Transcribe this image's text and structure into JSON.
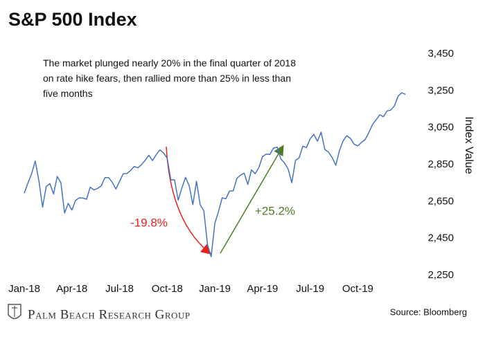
{
  "chart_data": {
    "type": "line",
    "title": "S&P 500 Index",
    "note": "The market plunged nearly 20% in the final quarter of 2018 on rate hike fears, then rallied more than 25% in less than five months",
    "annotations": [
      "-19.8%",
      "+25.2%"
    ],
    "ylabel": "Index Value",
    "source": "Source: Bloomberg",
    "brand": "Palm Beach Research Group",
    "color": "#4472c4",
    "categories": [
      "Jan-18",
      null,
      null,
      null,
      null,
      null,
      null,
      null,
      null,
      null,
      null,
      null,
      null,
      "Apr-18",
      null,
      null,
      null,
      null,
      null,
      null,
      null,
      null,
      null,
      null,
      null,
      null,
      "Jul-18",
      null,
      null,
      null,
      null,
      null,
      null,
      null,
      null,
      null,
      null,
      null,
      null,
      "Oct-18",
      null,
      null,
      null,
      null,
      null,
      null,
      null,
      null,
      null,
      null,
      null,
      null,
      "Jan-19",
      null,
      null,
      null,
      null,
      null,
      null,
      null,
      null,
      null,
      null,
      null,
      null,
      "Apr-19",
      null,
      null,
      null,
      null,
      null,
      null,
      null,
      null,
      null,
      null,
      null,
      null,
      "Jul-19",
      null,
      null,
      null,
      null,
      null,
      null,
      null,
      null,
      null,
      null,
      null,
      null,
      "Oct-19",
      null,
      null,
      null,
      null,
      null,
      null,
      null,
      null,
      null,
      null,
      null,
      null,
      null
    ],
    "values": [
      2695,
      2750,
      2800,
      2870,
      2762,
      2620,
      2732,
      2747,
      2691,
      2786,
      2752,
      2588,
      2640,
      2604,
      2656,
      2670,
      2669,
      2663,
      2728,
      2713,
      2721,
      2735,
      2779,
      2780,
      2755,
      2718,
      2759,
      2801,
      2802,
      2818,
      2840,
      2833,
      2850,
      2874,
      2901,
      2872,
      2904,
      2930,
      2914,
      2885,
      2767,
      2768,
      2658,
      2723,
      2781,
      2736,
      2633,
      2760,
      2633,
      2600,
      2416,
      2351,
      2532,
      2596,
      2670,
      2665,
      2707,
      2708,
      2775,
      2793,
      2804,
      2743,
      2822,
      2801,
      2834,
      2893,
      2907,
      2905,
      2940,
      2945,
      2881,
      2860,
      2826,
      2752,
      2873,
      2887,
      2950,
      2942,
      2990,
      3014,
      2977,
      3026,
      2932,
      2918,
      2889,
      2847,
      2926,
      2979,
      3007,
      2992,
      2961,
      2952,
      2970,
      2986,
      3023,
      3067,
      3093,
      3120,
      3110,
      3141,
      3146,
      3169,
      3221,
      3240,
      3231
    ],
    "ylim": [
      2250,
      3450
    ],
    "yticks": [
      {
        "value": 2250,
        "label": "2,250"
      },
      {
        "value": 2450,
        "label": "2,450"
      },
      {
        "value": 2650,
        "label": "2,650"
      },
      {
        "value": 2850,
        "label": "2,850"
      },
      {
        "value": 3050,
        "label": "3,050"
      },
      {
        "value": 3250,
        "label": "3,250"
      },
      {
        "value": 3450,
        "label": "3,450"
      }
    ]
  }
}
